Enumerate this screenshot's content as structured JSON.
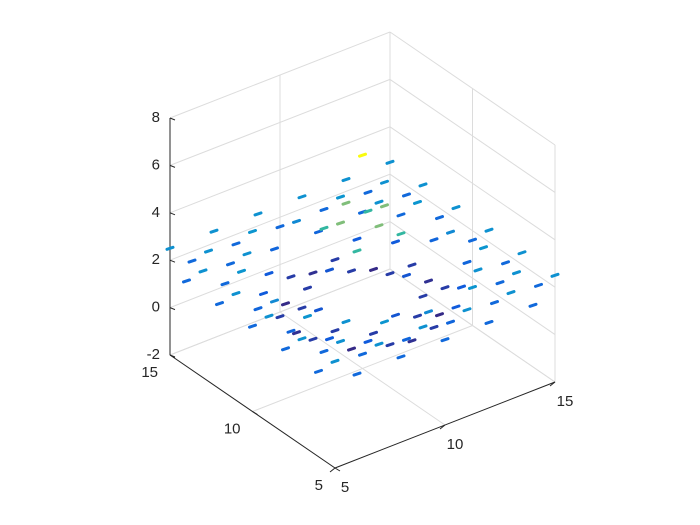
{
  "chart_data": {
    "type": "scatter3",
    "x": [
      5,
      6,
      7,
      8,
      9,
      10,
      11,
      12,
      13,
      14,
      15
    ],
    "y": [
      5,
      6,
      7,
      8,
      9,
      10,
      11,
      12,
      13,
      14,
      15
    ],
    "z": [
      [
        2.5,
        1.6,
        2.5,
        1.6,
        2.5,
        1.6,
        2.5,
        1.6,
        2.5,
        1.6,
        2.5
      ],
      [
        1.6,
        2.5,
        1.6,
        2.6,
        1.5,
        2.3,
        1.5,
        2.6,
        1.6,
        2.5,
        1.6
      ],
      [
        2.5,
        1.6,
        2.5,
        1.3,
        0.8,
        0.6,
        0.8,
        1.3,
        2.5,
        1.6,
        2.5
      ],
      [
        1.6,
        2.6,
        1.3,
        0.5,
        0.8,
        1.2,
        0.8,
        0.5,
        1.3,
        2.6,
        1.6
      ],
      [
        2.5,
        1.5,
        0.8,
        0.8,
        3.8,
        4.5,
        3.8,
        0.8,
        0.8,
        1.5,
        2.5
      ],
      [
        1.6,
        2.3,
        0.6,
        1.2,
        4.5,
        7,
        4.5,
        1.2,
        0.6,
        2.3,
        1.6
      ],
      [
        2.5,
        1.5,
        0.8,
        0.8,
        3.8,
        4.5,
        3.8,
        0.8,
        0.8,
        1.5,
        2.5
      ],
      [
        1.6,
        2.6,
        1.3,
        0.5,
        0.8,
        1.2,
        0.8,
        0.5,
        1.3,
        2.6,
        1.6
      ],
      [
        2.5,
        1.6,
        2.5,
        1.3,
        0.8,
        0.6,
        0.8,
        1.3,
        2.5,
        1.6,
        2.5
      ],
      [
        1.6,
        2.5,
        1.6,
        2.6,
        1.5,
        2.3,
        1.5,
        2.6,
        1.6,
        2.5,
        1.6
      ],
      [
        2.5,
        1.6,
        2.5,
        1.6,
        2.5,
        1.6,
        2.5,
        1.6,
        2.5,
        1.6,
        2.5
      ]
    ],
    "xlim": [
      5,
      15
    ],
    "ylim": [
      5,
      15
    ],
    "zlim": [
      -2,
      8
    ],
    "xticks": [
      5,
      10,
      15
    ],
    "yticks": [
      5,
      10,
      15
    ],
    "zticks": [
      -2,
      0,
      2,
      4,
      6,
      8
    ],
    "grid": true,
    "colormap": [
      "#352a87",
      "#0f5cdd",
      "#1481d6",
      "#06a4ca",
      "#2eb7a4",
      "#87bf77",
      "#d1bb59",
      "#fec832",
      "#f9fb0e"
    ]
  }
}
